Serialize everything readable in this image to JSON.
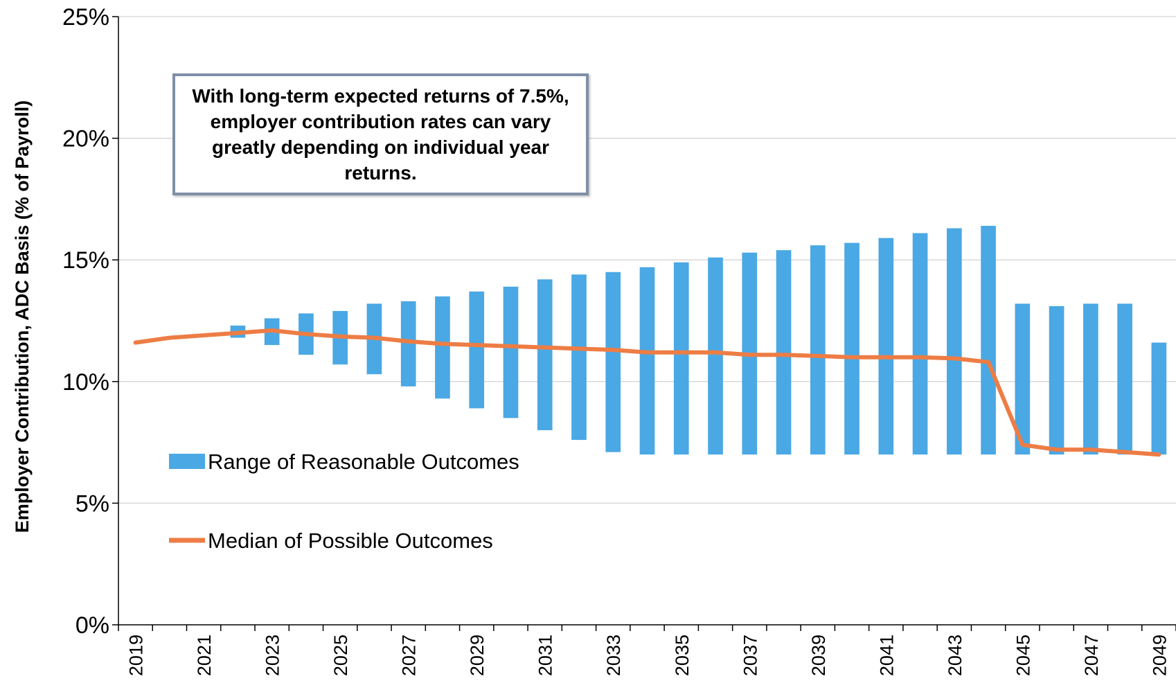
{
  "chart_data": {
    "type": "bar",
    "ylabel": "Employer Contribution, ADC Basis (% of Payroll)",
    "xlabel": "",
    "ylim": [
      0,
      25
    ],
    "yticks": [
      "0%",
      "5%",
      "10%",
      "15%",
      "20%",
      "25%"
    ],
    "grid": "horizontal",
    "x_tick_labels": [
      "2019",
      "2021",
      "2023",
      "2025",
      "2027",
      "2029",
      "2031",
      "2033",
      "2035",
      "2037",
      "2039",
      "2041",
      "2043",
      "2045",
      "2047",
      "2049"
    ],
    "years": [
      2019,
      2020,
      2021,
      2022,
      2023,
      2024,
      2025,
      2026,
      2027,
      2028,
      2029,
      2030,
      2031,
      2032,
      2033,
      2034,
      2035,
      2036,
      2037,
      2038,
      2039,
      2040,
      2041,
      2042,
      2043,
      2044,
      2045,
      2046,
      2047,
      2048,
      2049
    ],
    "series": [
      {
        "name": "Range of Reasonable Outcomes",
        "kind": "floating-bar",
        "color": "#4aa8e4",
        "low": [
          11.6,
          11.8,
          12.0,
          11.8,
          11.5,
          11.1,
          10.7,
          10.3,
          9.8,
          9.3,
          8.9,
          8.5,
          8.0,
          7.6,
          7.1,
          7.0,
          7.0,
          7.0,
          7.0,
          7.0,
          7.0,
          7.0,
          7.0,
          7.0,
          7.0,
          7.0,
          7.0,
          7.0,
          7.0,
          7.0,
          7.0
        ],
        "high": [
          11.6,
          11.8,
          12.0,
          12.3,
          12.6,
          12.8,
          12.9,
          13.2,
          13.3,
          13.5,
          13.7,
          13.9,
          14.2,
          14.4,
          14.5,
          14.7,
          14.9,
          15.1,
          15.3,
          15.4,
          15.6,
          15.7,
          15.9,
          16.1,
          16.3,
          16.4,
          13.2,
          13.1,
          13.2,
          13.2,
          11.6
        ]
      },
      {
        "name": "Median of Possible Outcomes",
        "kind": "line",
        "color": "#ed7d45",
        "values": [
          11.6,
          11.8,
          11.9,
          12.0,
          12.1,
          11.95,
          11.85,
          11.8,
          11.65,
          11.55,
          11.5,
          11.45,
          11.4,
          11.35,
          11.3,
          11.2,
          11.2,
          11.2,
          11.1,
          11.1,
          11.05,
          11.0,
          11.0,
          11.0,
          10.95,
          10.8,
          7.4,
          7.2,
          7.2,
          7.1,
          7.0
        ]
      }
    ],
    "legend": [
      {
        "label": "Range of Reasonable Outcomes",
        "color": "#4aa8e4"
      },
      {
        "label": "Median of Possible Outcomes",
        "color": "#ed7d45"
      }
    ],
    "legend_position": "left-middle",
    "annotation": "With long-term expected returns of 7.5%, employer contribution rates can vary greatly depending on individual year returns."
  }
}
